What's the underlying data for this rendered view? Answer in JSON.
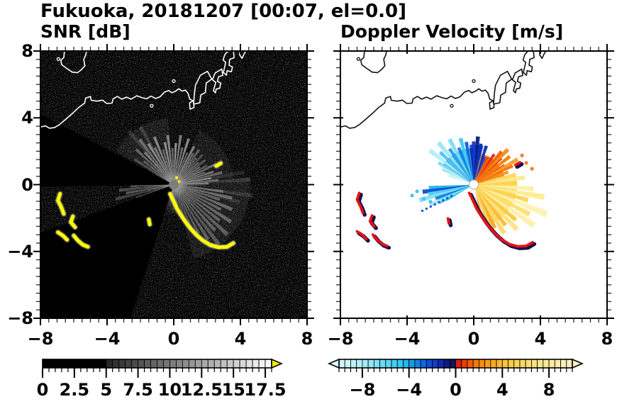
{
  "title": "Fukuoka, 20181207 [00:07, el=0.0]",
  "chart_data": [
    {
      "type": "heatmap",
      "id": "snr",
      "title": "SNR [dB]",
      "xlabel": "",
      "ylabel": "",
      "xlim": [
        -8,
        8
      ],
      "ylim": [
        -8,
        8
      ],
      "x_ticks": [
        -8,
        -4,
        0,
        4,
        8
      ],
      "x_tick_labels": [
        "−8",
        "−4",
        "0",
        "4",
        "8"
      ],
      "y_ticks": [
        8,
        4,
        0,
        -4,
        -8
      ],
      "y_tick_labels": [
        "8",
        "4",
        "0",
        "−4",
        "−8"
      ],
      "minor_tick_step": 0.5,
      "background": "#000000",
      "radar_center": [
        0,
        0
      ],
      "center_disk_color": "#7d7d7d",
      "glow_radius_units": 1.9,
      "colorbar": {
        "range": [
          0,
          18
        ],
        "block_step": 0.5,
        "major_step": 2.5,
        "tick_values": [
          0,
          2.5,
          5,
          7.5,
          10,
          12.5,
          15,
          17.5
        ],
        "tick_labels": [
          "0",
          "2.5",
          "5",
          "7.5",
          "10",
          "12.5",
          "15",
          "17.5"
        ],
        "threshold": 5,
        "below_threshold_color": "#000000",
        "ramp": [
          "#242424",
          "#ffffff"
        ],
        "overflow_color": "#f6ee00"
      },
      "faint_sectors": [
        [
          -75,
          5,
          4.6,
          0.07
        ],
        [
          5,
          65,
          3.6,
          0.06
        ],
        [
          95,
          150,
          4.0,
          0.07
        ]
      ],
      "dark_wedges": [
        [
          152,
          181
        ],
        [
          200,
          252
        ]
      ],
      "rays": [
        [
          62,
          2.6,
          0.45
        ],
        [
          67,
          2.1,
          0.35
        ],
        [
          72,
          2.9,
          0.5
        ],
        [
          77,
          2.3,
          0.4
        ],
        [
          82,
          3.0,
          0.45
        ],
        [
          87,
          2.5,
          0.55
        ],
        [
          92,
          2.2,
          0.4
        ],
        [
          97,
          3.0,
          0.45
        ],
        [
          102,
          2.6,
          0.5
        ],
        [
          107,
          2.2,
          0.35
        ],
        [
          112,
          3.1,
          0.45
        ],
        [
          117,
          2.5,
          0.4
        ],
        [
          122,
          2.9,
          0.45
        ],
        [
          127,
          3.4,
          0.35
        ],
        [
          132,
          2.6,
          0.4
        ],
        [
          137,
          3.1,
          0.3
        ],
        [
          142,
          2.3,
          0.3
        ],
        [
          147,
          2.8,
          0.22
        ],
        [
          120,
          4.0,
          0.15
        ],
        [
          130,
          4.2,
          0.13
        ],
        [
          182,
          2.6,
          0.3
        ],
        [
          186,
          3.3,
          0.25
        ],
        [
          190,
          2.9,
          0.3
        ],
        [
          194,
          3.6,
          0.2
        ],
        [
          199,
          2.4,
          0.18
        ],
        [
          2,
          2.1,
          0.4
        ],
        [
          6,
          2.7,
          0.3
        ],
        [
          10,
          2.3,
          0.42
        ],
        [
          14,
          3.0,
          0.32
        ],
        [
          18,
          2.5,
          0.38
        ],
        [
          22,
          2.0,
          0.3
        ],
        [
          26,
          2.8,
          0.35
        ],
        [
          30,
          2.3,
          0.28
        ],
        [
          34,
          1.9,
          0.32
        ],
        [
          38,
          2.4,
          0.26
        ],
        [
          42,
          2.0,
          0.3
        ],
        [
          46,
          2.5,
          0.22
        ],
        [
          50,
          2.1,
          0.28
        ],
        [
          54,
          2.6,
          0.3
        ],
        [
          58,
          2.2,
          0.35
        ],
        [
          4,
          4.6,
          0.13
        ],
        [
          10,
          4.3,
          0.1
        ],
        [
          352,
          4.8,
          0.12
        ],
        [
          345,
          4.1,
          0.1
        ],
        [
          -8,
          3.0,
          0.28
        ],
        [
          -13,
          3.6,
          0.32
        ],
        [
          -18,
          2.9,
          0.3
        ],
        [
          -23,
          3.8,
          0.33
        ],
        [
          -28,
          3.2,
          0.3
        ],
        [
          -33,
          4.1,
          0.32
        ],
        [
          -38,
          3.5,
          0.3
        ],
        [
          -43,
          4.4,
          0.28
        ],
        [
          -48,
          3.7,
          0.3
        ],
        [
          -53,
          4.5,
          0.26
        ],
        [
          -58,
          3.9,
          0.28
        ],
        [
          -63,
          3.3,
          0.25
        ],
        [
          -68,
          2.8,
          0.22
        ],
        [
          -73,
          2.3,
          0.2
        ],
        [
          -80,
          1.9,
          0.18
        ],
        [
          -86,
          1.5,
          0.2
        ],
        [
          -92,
          1.7,
          0.15
        ],
        [
          -100,
          1.3,
          0.12
        ],
        [
          212,
          1.4,
          0.1
        ],
        [
          222,
          1.1,
          0.08
        ]
      ],
      "yellow_dots": [
        [
          0.17,
          0.42
        ],
        [
          0.32,
          0.18
        ]
      ]
    },
    {
      "type": "heatmap",
      "id": "velocity",
      "title": "Doppler Velocity [m/s]",
      "xlabel": "",
      "ylabel": "",
      "xlim": [
        -8,
        8
      ],
      "ylim": [
        -8,
        8
      ],
      "x_ticks": [
        -8,
        -4,
        0,
        4,
        8
      ],
      "x_tick_labels": [
        "−8",
        "−4",
        "0",
        "4",
        "8"
      ],
      "minor_tick_step": 0.5,
      "background": "#ffffff",
      "radar_center": [
        0,
        0
      ],
      "center_hole_color": "#ffffff",
      "colorbar": {
        "range": [
          -10,
          10
        ],
        "block_step": 0.5,
        "major_ticks": [
          -8,
          -4,
          0,
          4,
          8
        ],
        "tick_values": [
          -8,
          -4,
          0,
          4,
          8
        ],
        "tick_labels": [
          "−8",
          "−4",
          "0",
          "4",
          "8"
        ],
        "anchors": [
          [
            -10,
            "#d8f8fa"
          ],
          [
            -8,
            "#aceef8"
          ],
          [
            -6,
            "#62d8f4"
          ],
          [
            -4.5,
            "#28c2f0"
          ],
          [
            -3.5,
            "#108ce8"
          ],
          [
            -2.5,
            "#0a5ae0"
          ],
          [
            -1.5,
            "#1032c8"
          ],
          [
            -0.75,
            "#0e1a84"
          ],
          [
            -0.01,
            "#0a1048"
          ],
          [
            0.01,
            "#d81010"
          ],
          [
            0.75,
            "#ee3c00"
          ],
          [
            1.75,
            "#f87800"
          ],
          [
            2.75,
            "#fa9c14"
          ],
          [
            4,
            "#fcc034"
          ],
          [
            5.5,
            "#fdd75e"
          ],
          [
            7.5,
            "#fde890"
          ],
          [
            10,
            "#f8f0c4"
          ]
        ]
      },
      "base_wedges": [
        [
          96,
          150,
          2.2,
          "#3aaeea"
        ],
        [
          76,
          96,
          2.4,
          "#1545d8"
        ],
        [
          16,
          76,
          1.9,
          "#f57a10"
        ],
        [
          -70,
          16,
          2.6,
          "#fcd95e"
        ],
        [
          182,
          210,
          2.3,
          "#35bdee"
        ]
      ],
      "streaks": [
        [
          100,
          2.6,
          "#0a64dc"
        ],
        [
          106,
          2.9,
          "#49c6f0"
        ],
        [
          112,
          2.4,
          "#0a80e4"
        ],
        [
          118,
          3.1,
          "#7edcf4"
        ],
        [
          124,
          2.6,
          "#23a0e8"
        ],
        [
          130,
          3.3,
          "#9ce6f6"
        ],
        [
          136,
          2.8,
          "#49c6f0"
        ],
        [
          142,
          3.35,
          "#b4ecf8"
        ],
        [
          148,
          2.5,
          "#7edcf4"
        ],
        [
          154,
          2.1,
          "#9ce6f6"
        ],
        [
          160,
          1.6,
          "#c0f0f8"
        ],
        [
          80,
          2.5,
          "#0a2cb0"
        ],
        [
          85,
          2.9,
          "#091d7c"
        ],
        [
          90,
          2.6,
          "#1238cc"
        ],
        [
          94,
          2.2,
          "#0a2cb0"
        ],
        [
          72,
          2.45,
          "#0a2cb0"
        ],
        [
          68,
          1.8,
          "#1545d8"
        ],
        [
          20,
          2.2,
          "#f8921c"
        ],
        [
          26,
          2.6,
          "#f57208"
        ],
        [
          32,
          2.2,
          "#ef5000"
        ],
        [
          38,
          2.75,
          "#f28000"
        ],
        [
          44,
          2.3,
          "#e93000"
        ],
        [
          50,
          2.6,
          "#f05c00"
        ],
        [
          56,
          2.2,
          "#e82400"
        ],
        [
          62,
          1.9,
          "#ef4c00"
        ],
        [
          30,
          3.05,
          "#f89e2e"
        ],
        [
          46,
          2.95,
          "#f8881c"
        ],
        [
          8,
          3.1,
          "#fde98d"
        ],
        [
          2,
          2.6,
          "#fcd44c"
        ],
        [
          -4,
          3.6,
          "#fdf0a6"
        ],
        [
          -10,
          4.3,
          "#fdec92"
        ],
        [
          -16,
          3.4,
          "#fcd44c"
        ],
        [
          -22,
          4.75,
          "#fdf2b0"
        ],
        [
          -28,
          3.8,
          "#fce070"
        ],
        [
          -34,
          4.35,
          "#fdf0a6"
        ],
        [
          -40,
          3.3,
          "#fcca40"
        ],
        [
          -46,
          3.75,
          "#fde482"
        ],
        [
          -52,
          3.1,
          "#fbbc32"
        ],
        [
          -58,
          3.45,
          "#fcd86a"
        ],
        [
          -64,
          2.9,
          "#f8a826"
        ],
        [
          -70,
          2.5,
          "#fccb4e"
        ],
        [
          -76,
          2.05,
          "#f89a20"
        ],
        [
          184,
          2.7,
          "#2cb4ec"
        ],
        [
          188,
          3.1,
          "#0a52d4"
        ],
        [
          192,
          2.8,
          "#52ccf0"
        ],
        [
          196,
          3.4,
          "#84e0f5"
        ],
        [
          200,
          2.45,
          "#1a82e2"
        ],
        [
          205,
          2.9,
          "#9fe8f6"
        ],
        [
          209,
          1.9,
          "#35bdee"
        ]
      ],
      "dot_ray": {
        "angle": 207,
        "r0": 1.5,
        "r1": 3.5,
        "step": 0.28,
        "color": "#105cd8"
      },
      "cyan_spots": [
        [
          -3.4,
          -0.4
        ],
        [
          -3.7,
          -0.65
        ],
        [
          -3.0,
          -0.85
        ],
        [
          -2.6,
          -1.02
        ]
      ],
      "orange_spots": [
        [
          3.15,
          1.3
        ],
        [
          3.5,
          0.95
        ],
        [
          2.9,
          1.75
        ]
      ]
    }
  ],
  "map": {
    "stroke_left": "#ffffff",
    "stroke_right": "#111111",
    "coast": [
      [
        -8,
        3.45
      ],
      [
        -7.7,
        3.52
      ],
      [
        -7.45,
        3.38
      ],
      [
        -7.15,
        3.42
      ],
      [
        -6.85,
        3.6
      ],
      [
        -6.5,
        3.9
      ],
      [
        -6.1,
        4.25
      ],
      [
        -5.7,
        4.62
      ],
      [
        -5.35,
        4.88
      ],
      [
        -5.28,
        5.18
      ],
      [
        -5.0,
        5.28
      ],
      [
        -4.95,
        5.05
      ],
      [
        -4.6,
        5.0
      ],
      [
        -4.28,
        5.06
      ],
      [
        -4.02,
        4.86
      ],
      [
        -3.7,
        4.88
      ],
      [
        -3.64,
        5.14
      ],
      [
        -3.38,
        5.28
      ],
      [
        -3.12,
        5.12
      ],
      [
        -2.84,
        5.24
      ],
      [
        -2.56,
        5.12
      ],
      [
        -2.22,
        5.32
      ],
      [
        -1.94,
        5.22
      ],
      [
        -1.63,
        5.14
      ],
      [
        -1.36,
        5.3
      ],
      [
        -1.1,
        5.16
      ],
      [
        -0.82,
        5.26
      ],
      [
        -0.56,
        5.54
      ],
      [
        -0.3,
        5.64
      ],
      [
        -0.12,
        5.5
      ],
      [
        0.08,
        5.58
      ],
      [
        0.3,
        5.74
      ],
      [
        0.5,
        5.6
      ],
      [
        0.7,
        5.66
      ],
      [
        0.86,
        5.46
      ],
      [
        0.96,
        5.12
      ],
      [
        1.2,
        5.0
      ]
    ],
    "piers": [
      [
        [
          1.2,
          5.0
        ],
        [
          1.25,
          5.55
        ],
        [
          1.3,
          5.95
        ],
        [
          1.6,
          6.55
        ],
        [
          2.02,
          6.78
        ],
        [
          2.28,
          6.32
        ],
        [
          1.95,
          6.08
        ],
        [
          1.9,
          5.52
        ],
        [
          1.62,
          5.36
        ],
        [
          1.56,
          4.9
        ],
        [
          1.2,
          4.82
        ]
      ],
      [
        [
          0.95,
          4.9
        ],
        [
          1.18,
          5.02
        ],
        [
          1.22,
          4.62
        ],
        [
          0.98,
          4.52
        ]
      ],
      [
        [
          2.38,
          5.62
        ],
        [
          2.52,
          6.12
        ],
        [
          2.32,
          6.28
        ],
        [
          2.48,
          6.68
        ],
        [
          2.88,
          6.92
        ],
        [
          2.94,
          6.55
        ],
        [
          2.68,
          6.45
        ],
        [
          2.62,
          6.18
        ],
        [
          2.82,
          6.08
        ],
        [
          2.76,
          5.78
        ],
        [
          2.55,
          5.72
        ],
        [
          2.5,
          5.5
        ]
      ],
      [
        [
          2.98,
          6.72
        ],
        [
          3.12,
          7.32
        ],
        [
          2.96,
          7.46
        ],
        [
          3.06,
          7.78
        ],
        [
          3.3,
          8.05
        ],
        [
          3.58,
          8.05
        ],
        [
          3.62,
          7.6
        ],
        [
          3.36,
          7.5
        ],
        [
          3.32,
          7.15
        ],
        [
          3.52,
          7.05
        ],
        [
          3.46,
          6.76
        ],
        [
          3.2,
          6.82
        ],
        [
          3.16,
          6.55
        ]
      ],
      [
        [
          3.95,
          7.78
        ],
        [
          4.1,
          7.56
        ],
        [
          4.22,
          7.82
        ],
        [
          4.35,
          8.05
        ],
        [
          3.98,
          8.05
        ]
      ]
    ],
    "island": [
      [
        -6.55,
        8.05
      ],
      [
        -6.6,
        7.6
      ],
      [
        -6.78,
        7.45
      ],
      [
        -6.72,
        7.18
      ],
      [
        -6.45,
        6.98
      ],
      [
        -6.1,
        6.74
      ],
      [
        -5.78,
        6.7
      ],
      [
        -5.52,
        6.9
      ],
      [
        -5.33,
        7.12
      ],
      [
        -5.4,
        7.5
      ],
      [
        -5.28,
        7.76
      ],
      [
        -5.22,
        8.05
      ]
    ],
    "dots": [
      [
        -6.92,
        7.52
      ],
      [
        0.0,
        6.2
      ],
      [
        -1.32,
        4.72
      ]
    ]
  },
  "hard_targets": {
    "chains": [
      [
        [
          -6.82,
          -0.55
        ],
        [
          -6.95,
          -0.95
        ],
        [
          -6.75,
          -1.35
        ],
        [
          -6.6,
          -1.75
        ]
      ],
      [
        [
          -6.05,
          -1.9
        ],
        [
          -6.18,
          -2.25
        ],
        [
          -5.92,
          -2.55
        ]
      ],
      [
        [
          -6.95,
          -2.85
        ],
        [
          -6.65,
          -3.05
        ],
        [
          -6.4,
          -3.3
        ]
      ],
      [
        [
          -6.0,
          -3.05
        ],
        [
          -5.75,
          -3.35
        ],
        [
          -5.45,
          -3.6
        ],
        [
          -5.15,
          -3.72
        ]
      ],
      [
        [
          -0.22,
          -0.55
        ],
        [
          0.0,
          -1.0
        ],
        [
          0.2,
          -1.45
        ],
        [
          0.45,
          -1.85
        ],
        [
          0.72,
          -2.25
        ],
        [
          1.0,
          -2.62
        ],
        [
          1.35,
          -3.0
        ],
        [
          1.75,
          -3.35
        ],
        [
          2.2,
          -3.62
        ],
        [
          2.7,
          -3.75
        ],
        [
          3.2,
          -3.72
        ],
        [
          3.58,
          -3.5
        ]
      ],
      [
        [
          -1.5,
          -2.08
        ],
        [
          -1.44,
          -2.38
        ]
      ],
      [
        [
          2.55,
          1.12
        ],
        [
          2.82,
          1.28
        ]
      ]
    ],
    "snr_color": "#ffff00",
    "snr_halo": "#bbbbbb",
    "vel_navy": "#13134e",
    "vel_red": "#e61212"
  }
}
